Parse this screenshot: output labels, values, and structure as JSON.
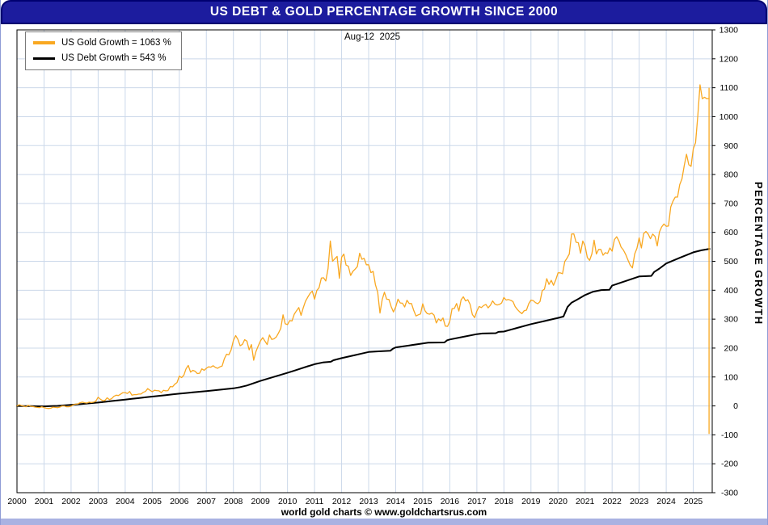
{
  "header": {
    "title": "US DEBT & GOLD PERCENTAGE GROWTH SINCE 2000"
  },
  "footer": {
    "text": "world gold charts © www.goldchartsrus.com"
  },
  "colors": {
    "title_bar": "#1C1C9E",
    "footer_strip": "#A9B2E2",
    "grid": "#CBD8EA",
    "gold": "#F9A821",
    "debt": "#000000"
  },
  "chart_data": {
    "type": "line",
    "title": "US DEBT & GOLD PERCENTAGE GROWTH SINCE 2000",
    "date_annotation": "Aug-12  2025",
    "xlabel": "",
    "ylabel": "PERCENTAGE GROWTH",
    "xlim": [
      2000,
      2025.7
    ],
    "ylim": [
      -300,
      1300
    ],
    "y_tick_step": 100,
    "x_ticks": [
      2000,
      2001,
      2002,
      2003,
      2004,
      2005,
      2006,
      2007,
      2008,
      2009,
      2010,
      2011,
      2012,
      2013,
      2014,
      2015,
      2016,
      2017,
      2018,
      2019,
      2020,
      2021,
      2022,
      2023,
      2024,
      2025
    ],
    "grid": true,
    "legend_position": "top-left",
    "series": [
      {
        "name": "US Gold Growth",
        "legend": "US Gold Growth = 1063 %",
        "current_value_pct": 1063,
        "color": "#F9A821",
        "width": 1.3,
        "x_start": 2000.0,
        "x_step": 0.0833333,
        "values": [
          0,
          4,
          1,
          -1,
          -3,
          2,
          -1,
          -2,
          -4,
          -5,
          -6,
          -3,
          -6,
          -8,
          -9,
          -8,
          -4,
          -5,
          -6,
          -4,
          0,
          0,
          -3,
          -3,
          -1,
          4,
          6,
          7,
          11,
          13,
          11,
          10,
          13,
          12,
          13,
          17,
          30,
          23,
          18,
          19,
          28,
          22,
          25,
          33,
          37,
          36,
          41,
          46,
          46,
          43,
          50,
          37,
          39,
          39,
          41,
          41,
          47,
          50,
          60,
          54,
          49,
          54,
          53,
          52,
          46,
          54,
          52,
          53,
          67,
          66,
          75,
          81,
          103,
          98,
          106,
          128,
          140,
          117,
          123,
          120,
          112,
          113,
          128,
          123,
          130,
          135,
          134,
          139,
          133,
          130,
          135,
          138,
          163,
          179,
          177,
          194,
          226,
          243,
          230,
          208,
          213,
          229,
          224,
          194,
          212,
          158,
          188,
          207,
          225,
          236,
          224,
          212,
          245,
          230,
          232,
          238,
          252,
          268,
          315,
          284,
          281,
          295,
          294,
          317,
          329,
          340,
          313,
          340,
          362,
          376,
          389,
          397,
          369,
          399,
          409,
          442,
          443,
          432,
          475,
          570,
          500,
          509,
          517,
          441,
          514,
          525,
          487,
          483,
          451,
          465,
          473,
          482,
          528,
          507,
          510,
          488,
          488,
          461,
          465,
          419,
          393,
          321,
          368,
          393,
          369,
          368,
          343,
          325,
          342,
          369,
          356,
          355,
          342,
          365,
          354,
          354,
          330,
          311,
          315,
          318,
          353,
          329,
          319,
          317,
          321,
          314,
          287,
          301,
          294,
          304,
          276,
          275,
          293,
          336,
          337,
          354,
          328,
          367,
          377,
          363,
          367,
          351,
          316,
          305,
          328,
          344,
          340,
          347,
          351,
          339,
          348,
          363,
          352,
          349,
          351,
          356,
          375,
          366,
          368,
          365,
          361,
          343,
          333,
          325,
          319,
          329,
          331,
          353,
          366,
          364,
          357,
          353,
          361,
          398,
          404,
          440,
          420,
          434,
          417,
          436,
          460,
          460,
          457,
          499,
          511,
          525,
          594,
          595,
          566,
          564,
          528,
          570,
          553,
          513,
          503,
          525,
          573,
          525,
          541,
          541,
          521,
          530,
          527,
          546,
          535,
          575,
          585,
          570,
          549,
          539,
          524,
          505,
          487,
          477,
          525,
          545,
          581,
          546,
          596,
          603,
          594,
          578,
          594,
          586,
          553,
          601,
          619,
          629,
          621,
          622,
          688,
          708,
          722,
          722,
          765,
          785,
          831,
          870,
          834,
          828,
          889,
          910,
          1004,
          1110,
          1062,
          1067,
          1062,
          1063
        ]
      },
      {
        "name": "US Debt Growth",
        "legend": "US Debt Growth = 543 %",
        "current_value_pct": 543,
        "color": "#000000",
        "width": 2,
        "points": [
          [
            2000.0,
            0
          ],
          [
            2000.25,
            -0.3
          ],
          [
            2000.5,
            -0.8
          ],
          [
            2000.75,
            -1.2
          ],
          [
            2001.0,
            -1.4
          ],
          [
            2001.25,
            -0.8
          ],
          [
            2001.5,
            0.3
          ],
          [
            2001.75,
            1.8
          ],
          [
            2002.0,
            3.5
          ],
          [
            2002.25,
            5.5
          ],
          [
            2002.5,
            7.5
          ],
          [
            2002.75,
            9.6
          ],
          [
            2003.0,
            11.6
          ],
          [
            2003.25,
            14.2
          ],
          [
            2003.5,
            16.8
          ],
          [
            2003.75,
            19.4
          ],
          [
            2004.0,
            21.9
          ],
          [
            2004.25,
            24.5
          ],
          [
            2004.5,
            27.1
          ],
          [
            2004.75,
            29.7
          ],
          [
            2005.0,
            32.3
          ],
          [
            2005.25,
            34.8
          ],
          [
            2005.5,
            37.3
          ],
          [
            2005.75,
            39.8
          ],
          [
            2006.0,
            42.3
          ],
          [
            2006.25,
            44.5
          ],
          [
            2006.5,
            46.7
          ],
          [
            2006.75,
            49.0
          ],
          [
            2007.0,
            51.2
          ],
          [
            2007.25,
            53.6
          ],
          [
            2007.5,
            56.0
          ],
          [
            2007.75,
            58.4
          ],
          [
            2008.0,
            60.8
          ],
          [
            2008.25,
            65.0
          ],
          [
            2008.5,
            70.5
          ],
          [
            2008.75,
            78.5
          ],
          [
            2009.0,
            86.4
          ],
          [
            2009.25,
            93.5
          ],
          [
            2009.5,
            100.5
          ],
          [
            2009.75,
            107.5
          ],
          [
            2010.0,
            114.5
          ],
          [
            2010.25,
            122.0
          ],
          [
            2010.5,
            129.5
          ],
          [
            2010.75,
            137.0
          ],
          [
            2011.0,
            144.3
          ],
          [
            2011.3,
            150.0
          ],
          [
            2011.6,
            152.5
          ],
          [
            2011.7,
            158.0
          ],
          [
            2012.0,
            165.2
          ],
          [
            2012.25,
            170.5
          ],
          [
            2012.5,
            175.8
          ],
          [
            2012.75,
            181.0
          ],
          [
            2013.0,
            186.3
          ],
          [
            2013.3,
            188.5
          ],
          [
            2013.8,
            190.5
          ],
          [
            2013.9,
            198.0
          ],
          [
            2014.0,
            202.3
          ],
          [
            2014.5,
            209.0
          ],
          [
            2015.0,
            216.0
          ],
          [
            2015.2,
            218.5
          ],
          [
            2015.8,
            219.5
          ],
          [
            2015.9,
            227.0
          ],
          [
            2016.0,
            229.7
          ],
          [
            2016.5,
            239.0
          ],
          [
            2017.0,
            248.0
          ],
          [
            2017.2,
            250.5
          ],
          [
            2017.7,
            251.5
          ],
          [
            2017.8,
            256.0
          ],
          [
            2018.0,
            257.0
          ],
          [
            2018.5,
            270.0
          ],
          [
            2019.0,
            282.8
          ],
          [
            2019.5,
            293.5
          ],
          [
            2019.9,
            302.0
          ],
          [
            2020.0,
            304.2
          ],
          [
            2020.2,
            309.0
          ],
          [
            2020.35,
            342.0
          ],
          [
            2020.5,
            357.0
          ],
          [
            2020.75,
            370.0
          ],
          [
            2021.0,
            383.4
          ],
          [
            2021.3,
            395.0
          ],
          [
            2021.6,
            400.5
          ],
          [
            2021.9,
            401.5
          ],
          [
            2022.0,
            416.0
          ],
          [
            2022.5,
            432.0
          ],
          [
            2023.0,
            447.4
          ],
          [
            2023.45,
            449.5
          ],
          [
            2023.55,
            463.0
          ],
          [
            2023.75,
            475.0
          ],
          [
            2024.0,
            492.4
          ],
          [
            2024.5,
            512.0
          ],
          [
            2025.0,
            531.0
          ],
          [
            2025.3,
            538.0
          ],
          [
            2025.6,
            543.0
          ]
        ]
      }
    ],
    "end_marker": {
      "x": 2025.583,
      "from": 1100,
      "to": -97,
      "color": "#F9A821"
    }
  }
}
